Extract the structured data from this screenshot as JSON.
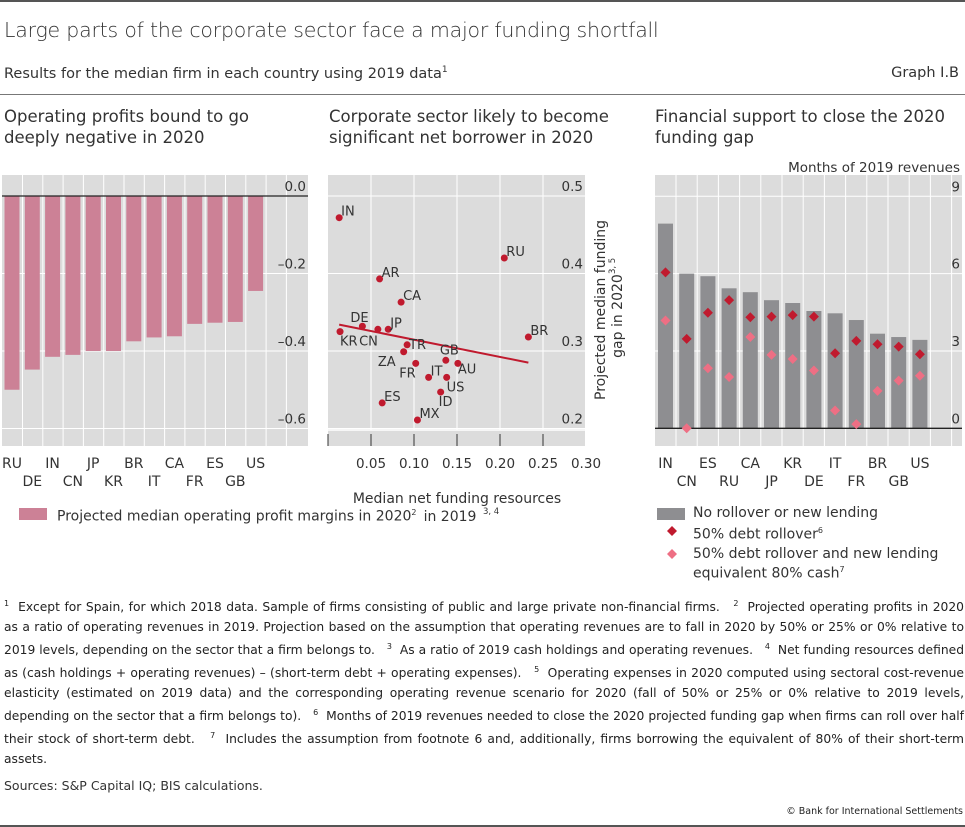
{
  "header": {
    "title": "Large parts of the corporate sector face a major funding shortfall",
    "subtitle": "Results for the median firm in each country using 2019 data",
    "subtitle_sup": "1",
    "graph_id": "Graph I.B"
  },
  "colors": {
    "panel_bg": "#dcdcdc",
    "pink_bar": "#cc8196",
    "grey_bar": "#8e8e91",
    "dark_red": "#c01a2e",
    "light_pink": "#ee6f84",
    "trend": "#c01a2e"
  },
  "chart_data": [
    {
      "type": "bar",
      "title": "Operating profits bound to go deeply negative in 2020",
      "categories": [
        "RU",
        "DE",
        "IN",
        "CN",
        "JP",
        "KR",
        "BR",
        "IT",
        "CA",
        "FR",
        "ES",
        "GB",
        "US"
      ],
      "series": [
        {
          "name": "Projected median operating profit margins in 2020",
          "name_sup": "2",
          "values": [
            -0.5,
            -0.448,
            -0.415,
            -0.41,
            -0.4,
            -0.4,
            -0.375,
            -0.365,
            -0.362,
            -0.33,
            -0.327,
            -0.325,
            -0.245
          ]
        }
      ],
      "ylim": [
        -0.65,
        0.0
      ],
      "yticks": [
        0.0,
        -0.2,
        -0.4,
        -0.6
      ],
      "ytick_labels": [
        "0.0",
        "–0.2",
        "–0.4",
        "–0.6"
      ],
      "xlabel": "",
      "ylabel": "",
      "grid": true,
      "legend_position": "bottom"
    },
    {
      "type": "scatter",
      "title": "Corporate sector likely to become significant net borrower in 2020",
      "points": [
        {
          "label": "IN",
          "x": 0.013,
          "y": 0.472
        },
        {
          "label": "RU",
          "x": 0.205,
          "y": 0.42
        },
        {
          "label": "AR",
          "x": 0.06,
          "y": 0.393
        },
        {
          "label": "CA",
          "x": 0.085,
          "y": 0.363
        },
        {
          "label": "DE",
          "x": 0.04,
          "y": 0.332
        },
        {
          "label": "CN",
          "x": 0.058,
          "y": 0.328
        },
        {
          "label": "JP",
          "x": 0.07,
          "y": 0.328
        },
        {
          "label": "KR",
          "x": 0.014,
          "y": 0.325
        },
        {
          "label": "BR",
          "x": 0.233,
          "y": 0.318
        },
        {
          "label": "TR",
          "x": 0.092,
          "y": 0.308
        },
        {
          "label": "ZA",
          "x": 0.088,
          "y": 0.299
        },
        {
          "label": "GB",
          "x": 0.137,
          "y": 0.288
        },
        {
          "label": "AU",
          "x": 0.151,
          "y": 0.284
        },
        {
          "label": "FR",
          "x": 0.102,
          "y": 0.284
        },
        {
          "label": "IT",
          "x": 0.117,
          "y": 0.266
        },
        {
          "label": "US",
          "x": 0.138,
          "y": 0.266
        },
        {
          "label": "ID",
          "x": 0.131,
          "y": 0.247
        },
        {
          "label": "ES",
          "x": 0.063,
          "y": 0.233
        },
        {
          "label": "MX",
          "x": 0.104,
          "y": 0.211
        }
      ],
      "trendline": {
        "x": [
          0.013,
          0.233
        ],
        "y": [
          0.334,
          0.285
        ]
      },
      "xlim": [
        0.0,
        0.3
      ],
      "ylim": [
        0.185,
        0.5
      ],
      "xticks": [
        0.05,
        0.1,
        0.15,
        0.2,
        0.25,
        0.3
      ],
      "xtick_labels": [
        "0.05",
        "0.10",
        "0.15",
        "0.20",
        "0.25",
        "0.30"
      ],
      "yticks": [
        0.5,
        0.4,
        0.3,
        0.2
      ],
      "ytick_labels": [
        "0.5",
        "0.4",
        "0.3",
        "0.2"
      ],
      "xlabel": "Median net funding resources",
      "xlabel_line2": "in 2019",
      "xlabel_sup": "3, 4",
      "ylabel": "Projected median funding",
      "ylabel_line2": "gap in 2020",
      "ylabel_sup": "3, 5",
      "grid": true
    },
    {
      "type": "bar",
      "title": "Financial support to close the 2020 funding gap",
      "unit_label": "Months of 2019 revenues",
      "categories": [
        "IN",
        "CN",
        "ES",
        "RU",
        "CA",
        "JP",
        "KR",
        "DE",
        "IT",
        "FR",
        "BR",
        "GB",
        "US"
      ],
      "series": [
        {
          "name": "No rollover or new lending",
          "kind": "bar",
          "values": [
            7.94,
            6.0,
            5.9,
            5.43,
            5.28,
            4.97,
            4.86,
            4.55,
            4.46,
            4.2,
            3.67,
            3.54,
            3.43
          ]
        },
        {
          "name": "50% debt rollover",
          "name_sup": "6",
          "kind": "marker",
          "values": [
            6.05,
            3.47,
            4.48,
            4.97,
            4.31,
            4.33,
            4.39,
            4.33,
            2.91,
            3.39,
            3.26,
            3.17,
            2.87
          ]
        },
        {
          "name": "50% debt rollover and new lending equivalent 80% cash",
          "name_line1": "50% debt rollover and new lending",
          "name_line2": "equivalent 80% cash",
          "name_sup": "7",
          "kind": "marker",
          "values": [
            4.18,
            0.0,
            2.33,
            1.99,
            3.54,
            2.85,
            2.69,
            2.24,
            0.69,
            0.16,
            1.45,
            1.85,
            2.04
          ]
        }
      ],
      "ylim": [
        -0.5,
        9.8
      ],
      "yticks": [
        9,
        6,
        3,
        0
      ],
      "ytick_labels": [
        "9",
        "6",
        "3",
        "0"
      ],
      "grid": true,
      "legend_position": "bottom"
    }
  ],
  "footnotes": [
    {
      "n": "1",
      "text": "Except for Spain, for which 2018 data. Sample of firms consisting of public and large private non-financial firms."
    },
    {
      "n": "2",
      "text": "Projected operating profits in 2020 as a ratio of operating revenues in 2019. Projection based on the assumption that operating revenues are to fall in 2020 by 50% or 25% or 0% relative to 2019 levels, depending on the sector that a firm belongs to."
    },
    {
      "n": "3",
      "text": "As a ratio of 2019 cash holdings and operating revenues."
    },
    {
      "n": "4",
      "text": "Net funding resources defined as (cash holdings + operating revenues) – (short-term debt + operating expenses)."
    },
    {
      "n": "5",
      "text": "Operating expenses in 2020 computed using sectoral cost-revenue elasticity (estimated on 2019 data) and the corresponding operating revenue scenario for 2020 (fall of 50% or 25% or 0% relative to 2019 levels, depending on the sector that a firm belongs to)."
    },
    {
      "n": "6",
      "text": "Months of 2019 revenues needed to close the 2020 projected funding gap when firms can roll over half their stock of short-term debt."
    },
    {
      "n": "7",
      "text": "Includes the assumption from footnote 6 and, additionally, firms borrowing the equivalent of 80% of their short-term assets."
    }
  ],
  "sources": "Sources: S&P Capital IQ; BIS calculations.",
  "copyright": "© Bank for International Settlements"
}
